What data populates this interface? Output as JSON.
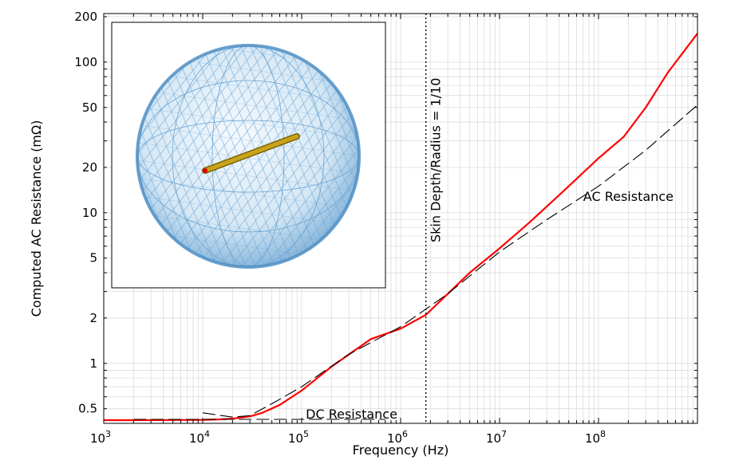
{
  "chart_data": {
    "type": "line",
    "title": "",
    "xlabel": "Frequency (Hz)",
    "ylabel": "Computed AC Resistance (mΩ)",
    "xscale": "log",
    "yscale": "log",
    "xlim": [
      1000,
      1000000000
    ],
    "ylim": [
      0.4,
      210
    ],
    "grid": true,
    "legend": "none",
    "x_ticks": [
      {
        "value": 1000,
        "base": "10",
        "exp": "3"
      },
      {
        "value": 10000,
        "base": "10",
        "exp": "4"
      },
      {
        "value": 100000,
        "base": "10",
        "exp": "5"
      },
      {
        "value": 1000000,
        "base": "10",
        "exp": "6"
      },
      {
        "value": 10000000,
        "base": "10",
        "exp": "7"
      },
      {
        "value": 100000000,
        "base": "10",
        "exp": "8"
      }
    ],
    "y_ticks": [
      {
        "value": 0.5,
        "label": "0.5"
      },
      {
        "value": 1,
        "label": "1"
      },
      {
        "value": 2,
        "label": "2"
      },
      {
        "value": 5,
        "label": "5"
      },
      {
        "value": 10,
        "label": "10"
      },
      {
        "value": 20,
        "label": "20"
      },
      {
        "value": 50,
        "label": "50"
      },
      {
        "value": 100,
        "label": "100"
      },
      {
        "value": 200,
        "label": "200"
      }
    ],
    "series": [
      {
        "color": "#ff0000",
        "style": "solid",
        "x": [
          1000,
          2000,
          5000,
          10000,
          15000,
          20000,
          30000,
          40000,
          60000,
          100000,
          200000,
          500000,
          1000000,
          1800000,
          3000000,
          5000000,
          10000000,
          20000000,
          50000000,
          100000000,
          180000000,
          300000000,
          500000000,
          1000000000
        ],
        "y": [
          0.42,
          0.42,
          0.421,
          0.422,
          0.425,
          0.43,
          0.445,
          0.47,
          0.53,
          0.66,
          0.95,
          1.45,
          1.7,
          2.1,
          2.9,
          4.0,
          5.8,
          8.6,
          15,
          23,
          32,
          50,
          85,
          155
        ]
      },
      {
        "color": "#000000",
        "style": "dashed",
        "x": [
          10000,
          20000,
          30000,
          50000,
          100000,
          300000,
          1000000,
          3000000,
          10000000,
          30000000,
          100000000,
          300000000,
          1000000000
        ],
        "y": [
          0.47,
          0.44,
          0.45,
          0.54,
          0.7,
          1.15,
          1.75,
          2.9,
          5.5,
          9.0,
          15,
          26,
          52
        ]
      },
      {
        "color": "#000000",
        "style": "dashed",
        "x": [
          2000,
          700000
        ],
        "y": [
          0.425,
          0.425
        ]
      }
    ],
    "vline": {
      "x": 1800000,
      "label": "Skin Depth/Radius = 1/10"
    },
    "annotations": {
      "ac": {
        "text": "AC Resistance",
        "x": 70000000,
        "y": 12
      },
      "dc": {
        "text": "DC Resistance",
        "x": 110000,
        "y": 0.43
      }
    },
    "inset": {
      "description_icon": "sphere-mesh-with-wire-icon"
    },
    "colors": {
      "curve": "#ff0000",
      "grid": "#dcdcdc",
      "sphere": "#2f7fbf",
      "wire": "#b8960a"
    }
  }
}
